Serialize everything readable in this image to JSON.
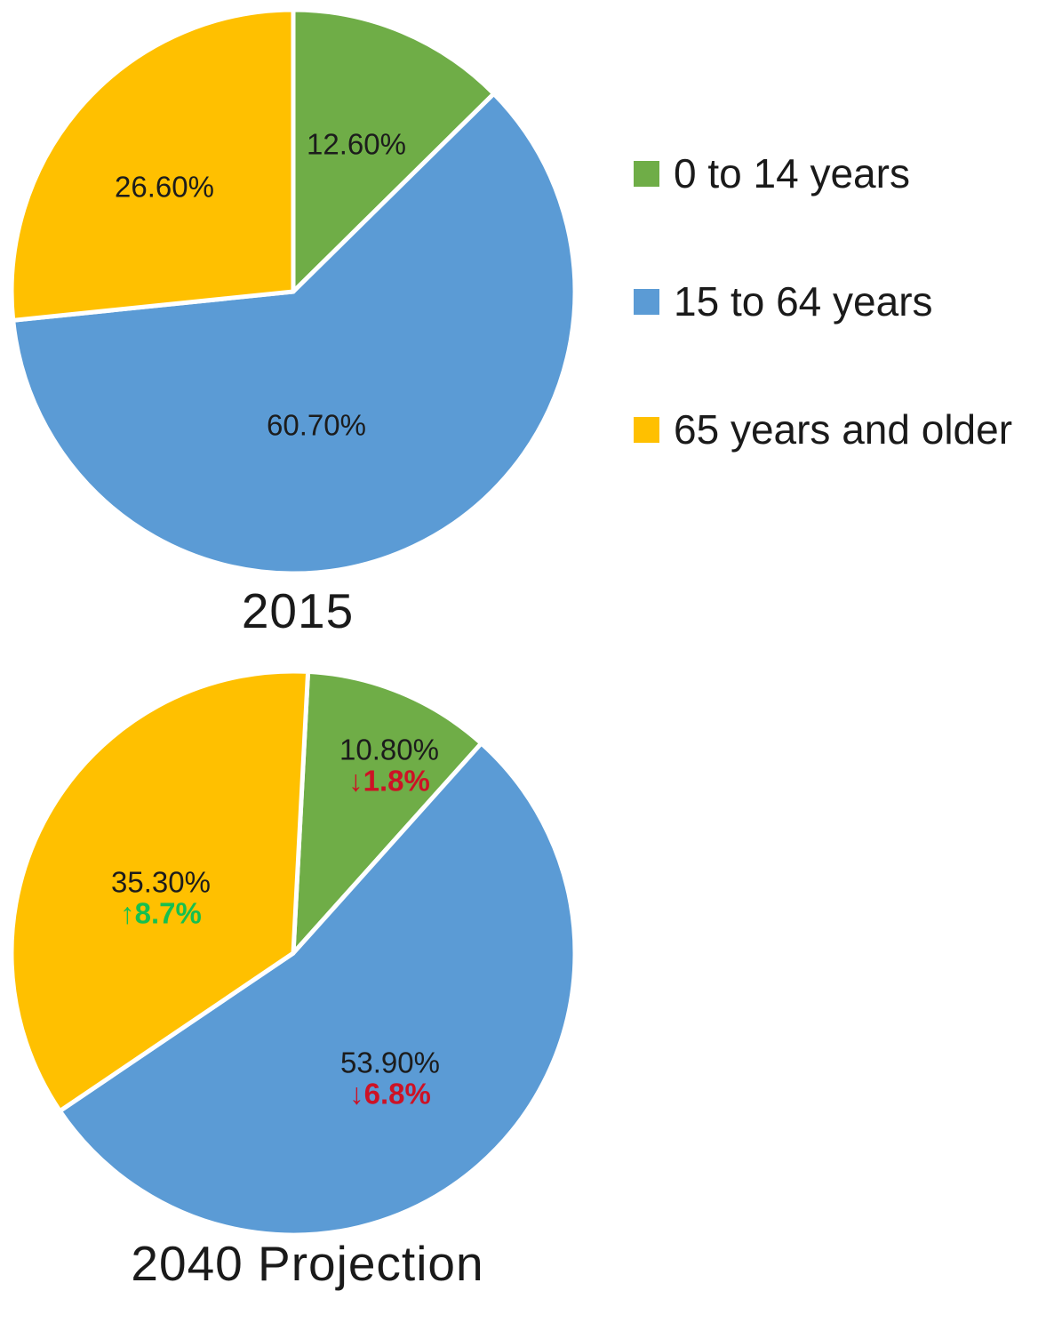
{
  "background": "#ffffff",
  "colors": {
    "green": "#6FAD47",
    "blue": "#5B9BD5",
    "yellow": "#FFC000",
    "change_up": "#16C04F",
    "change_down": "#CD1225",
    "text": "#1a1a1a"
  },
  "legend": {
    "position": "right",
    "items": [
      {
        "label": "0 to 14 years",
        "color_key": "green"
      },
      {
        "label": "15 to 64 years",
        "color_key": "blue"
      },
      {
        "label": "65 years and older",
        "color_key": "yellow"
      }
    ]
  },
  "chart_data": [
    {
      "type": "pie",
      "title": "2015",
      "direction": "clockwise",
      "start_angle_deg": 0,
      "slices": [
        {
          "category": "0 to 14 years",
          "value": 12.6,
          "value_label": "12.60%",
          "color_key": "green",
          "label_angle_deg": 23,
          "label_r_frac": 0.57
        },
        {
          "category": "15 to 64 years",
          "value": 60.7,
          "value_label": "60.70%",
          "color_key": "blue",
          "label_angle_deg": 170,
          "label_r_frac": 0.48
        },
        {
          "category": "65 years and older",
          "value": 26.6,
          "value_label": "26.60%",
          "color_key": "yellow",
          "label_angle_deg": 309,
          "label_r_frac": 0.59
        }
      ]
    },
    {
      "type": "pie",
      "title": "2040 Projection",
      "direction": "clockwise",
      "start_angle_deg": 3,
      "slices": [
        {
          "category": "0 to 14 years",
          "value": 10.8,
          "value_label": "10.80%",
          "change_label": "↓1.8%",
          "change_dir": "down",
          "color_key": "green",
          "label_angle_deg": 27,
          "label_r_frac": 0.75
        },
        {
          "category": "15 to 64 years",
          "value": 53.9,
          "value_label": "53.90%",
          "change_label": "↓6.8%",
          "change_dir": "down",
          "color_key": "blue",
          "label_angle_deg": 142,
          "label_r_frac": 0.56
        },
        {
          "category": "65 years and older",
          "value": 35.3,
          "value_label": "35.30%",
          "change_label": "↑8.7%",
          "change_dir": "up",
          "color_key": "yellow",
          "label_angle_deg": 293,
          "label_r_frac": 0.51
        }
      ]
    }
  ]
}
